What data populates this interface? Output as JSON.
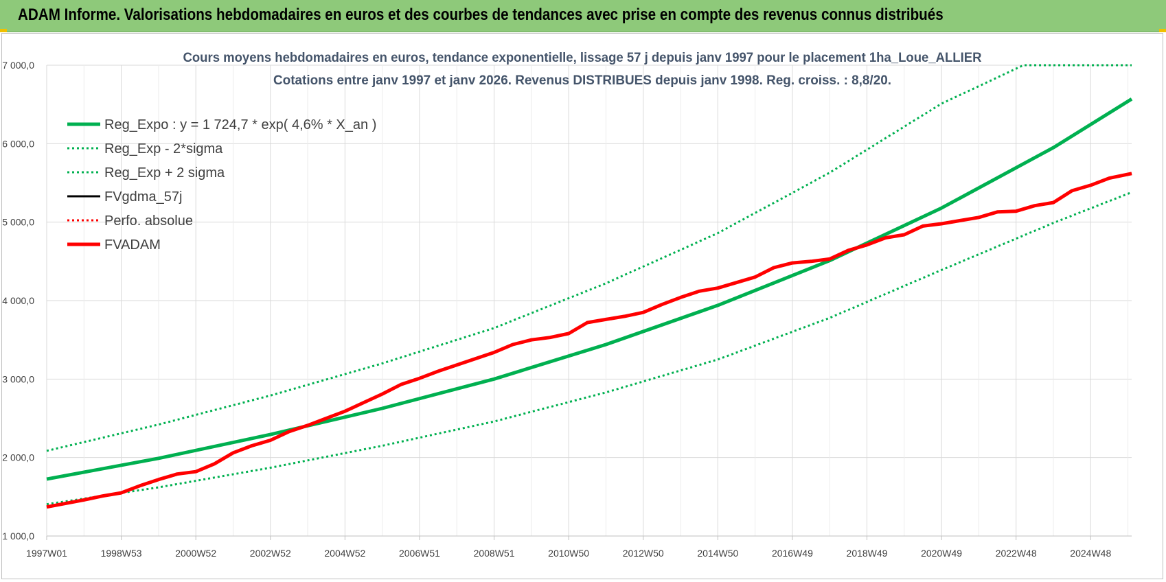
{
  "banner": {
    "title": "ADAM Informe. Valorisations hebdomadaires en euros et des courbes de tendances avec prise en compte des revenus connus distribués"
  },
  "chart_data": {
    "type": "line",
    "title": "Cours moyens hebdomadaires en euros, tendance exponentielle, lissage 57 j depuis janv 1997  pour le placement 1ha_Loue_ALLIER",
    "subtitle": "Cotations entre janv 1997 et janv 2026. Revenus DISTRIBUES depuis janv 1998.  Reg. croiss. : 8,8/20.",
    "xlabel": "",
    "ylabel": "",
    "x_range": [
      1997.0,
      2026.1
    ],
    "ylim": [
      1000,
      7000
    ],
    "y_ticks": [
      {
        "value": 1000,
        "label": "1 000,0"
      },
      {
        "value": 2000,
        "label": "2 000,0"
      },
      {
        "value": 3000,
        "label": "3 000,0"
      },
      {
        "value": 4000,
        "label": "4 000,0"
      },
      {
        "value": 5000,
        "label": "5 000,0"
      },
      {
        "value": 6000,
        "label": "6 000,0"
      },
      {
        "value": 7000,
        "label": "7 000,0"
      }
    ],
    "x_ticks": [
      {
        "value": 1997.0,
        "label": "1997W01"
      },
      {
        "value": 1999.0,
        "label": "1998W53"
      },
      {
        "value": 2001.0,
        "label": "2000W52"
      },
      {
        "value": 2003.0,
        "label": "2002W52"
      },
      {
        "value": 2005.0,
        "label": "2004W52"
      },
      {
        "value": 2007.0,
        "label": "2006W51"
      },
      {
        "value": 2009.0,
        "label": "2008W51"
      },
      {
        "value": 2011.0,
        "label": "2010W50"
      },
      {
        "value": 2013.0,
        "label": "2012W50"
      },
      {
        "value": 2015.0,
        "label": "2014W50"
      },
      {
        "value": 2017.0,
        "label": "2016W49"
      },
      {
        "value": 2019.0,
        "label": "2018W49"
      },
      {
        "value": 2021.0,
        "label": "2020W49"
      },
      {
        "value": 2023.0,
        "label": "2022W48"
      },
      {
        "value": 2025.0,
        "label": "2024W48"
      }
    ],
    "legend_position": "top-left",
    "series": [
      {
        "name": "Reg_Expo : y = 1 724,7 * exp( 4,6% *  X_an )",
        "color": "#00b050",
        "style": "solid",
        "width": 5,
        "x": [
          1997.0,
          2000.0,
          2003.0,
          2006.0,
          2009.0,
          2012.0,
          2015.0,
          2018.0,
          2021.0,
          2024.0,
          2026.1
        ],
        "values": [
          1725,
          1990,
          2294,
          2627,
          3000,
          3440,
          3940,
          4510,
          5180,
          5950,
          6570
        ]
      },
      {
        "name": "Reg_Exp - 2*sigma",
        "color": "#00b050",
        "style": "dotted",
        "width": 3,
        "x": [
          1997.0,
          2000.0,
          2003.0,
          2006.0,
          2009.0,
          2012.0,
          2015.0,
          2018.0,
          2021.0,
          2024.0,
          2026.1
        ],
        "values": [
          1405,
          1620,
          1870,
          2150,
          2460,
          2830,
          3250,
          3780,
          4390,
          4990,
          5380
        ]
      },
      {
        "name": "Reg_Exp + 2 sigma",
        "color": "#00b050",
        "style": "dotted",
        "width": 3,
        "x": [
          1997.0,
          2000.0,
          2003.0,
          2006.0,
          2009.0,
          2012.0,
          2015.0,
          2018.0,
          2021.0,
          2023.2,
          2026.1
        ],
        "values": [
          2085,
          2420,
          2790,
          3200,
          3650,
          4220,
          4860,
          5630,
          6510,
          7000,
          7000
        ]
      },
      {
        "name": "FVgdma_57j",
        "color": "#000000",
        "style": "solid",
        "width": 3,
        "x": [
          1997.0,
          1998.0,
          1998.5,
          1999.0,
          1999.5,
          2000.0,
          2000.5,
          2001.0,
          2001.5,
          2002.0,
          2002.5,
          2003.0,
          2003.5,
          2004.0,
          2004.5,
          2005.0,
          2005.5,
          2006.0,
          2006.5,
          2007.0,
          2007.5,
          2008.0,
          2008.5,
          2009.0,
          2009.5,
          2010.0,
          2010.5,
          2011.0,
          2011.5,
          2012.0,
          2012.5,
          2013.0,
          2013.5,
          2014.0,
          2014.5,
          2015.0,
          2015.5,
          2016.0,
          2016.5,
          2017.0,
          2017.5,
          2018.0,
          2018.5,
          2019.0,
          2019.5,
          2020.0,
          2020.5,
          2021.0,
          2021.5,
          2022.0,
          2022.5,
          2023.0,
          2023.5,
          2024.0,
          2024.5,
          2025.0,
          2025.5,
          2026.1
        ],
        "values": [
          1370,
          1460,
          1510,
          1550,
          1640,
          1720,
          1790,
          1820,
          1920,
          2060,
          2150,
          2220,
          2330,
          2410,
          2500,
          2590,
          2700,
          2810,
          2930,
          3010,
          3100,
          3180,
          3260,
          3340,
          3440,
          3500,
          3530,
          3580,
          3720,
          3760,
          3800,
          3850,
          3950,
          4040,
          4120,
          4160,
          4230,
          4300,
          4420,
          4480,
          4500,
          4530,
          4640,
          4710,
          4800,
          4840,
          4950,
          4980,
          5020,
          5060,
          5130,
          5140,
          5210,
          5250,
          5400,
          5470,
          5560,
          5620
        ]
      },
      {
        "name": "Perfo. absolue",
        "color": "#ff0000",
        "style": "dotted",
        "width": 3,
        "x": [],
        "values": []
      },
      {
        "name": "FVADAM",
        "color": "#ff0000",
        "style": "solid",
        "width": 5,
        "x": [
          1997.0,
          1998.0,
          1998.5,
          1999.0,
          1999.5,
          2000.0,
          2000.5,
          2001.0,
          2001.5,
          2002.0,
          2002.5,
          2003.0,
          2003.5,
          2004.0,
          2004.5,
          2005.0,
          2005.5,
          2006.0,
          2006.5,
          2007.0,
          2007.5,
          2008.0,
          2008.5,
          2009.0,
          2009.5,
          2010.0,
          2010.5,
          2011.0,
          2011.5,
          2012.0,
          2012.5,
          2013.0,
          2013.5,
          2014.0,
          2014.5,
          2015.0,
          2015.5,
          2016.0,
          2016.5,
          2017.0,
          2017.5,
          2018.0,
          2018.5,
          2019.0,
          2019.5,
          2020.0,
          2020.5,
          2021.0,
          2021.5,
          2022.0,
          2022.5,
          2023.0,
          2023.5,
          2024.0,
          2024.5,
          2025.0,
          2025.5,
          2026.1
        ],
        "values": [
          1370,
          1460,
          1510,
          1550,
          1640,
          1720,
          1790,
          1820,
          1920,
          2060,
          2150,
          2220,
          2330,
          2410,
          2500,
          2590,
          2700,
          2810,
          2930,
          3010,
          3100,
          3180,
          3260,
          3340,
          3440,
          3500,
          3530,
          3580,
          3720,
          3760,
          3800,
          3850,
          3950,
          4040,
          4120,
          4160,
          4230,
          4300,
          4420,
          4480,
          4500,
          4530,
          4640,
          4710,
          4800,
          4840,
          4950,
          4980,
          5020,
          5060,
          5130,
          5140,
          5210,
          5250,
          5400,
          5470,
          5560,
          5620
        ]
      }
    ]
  }
}
